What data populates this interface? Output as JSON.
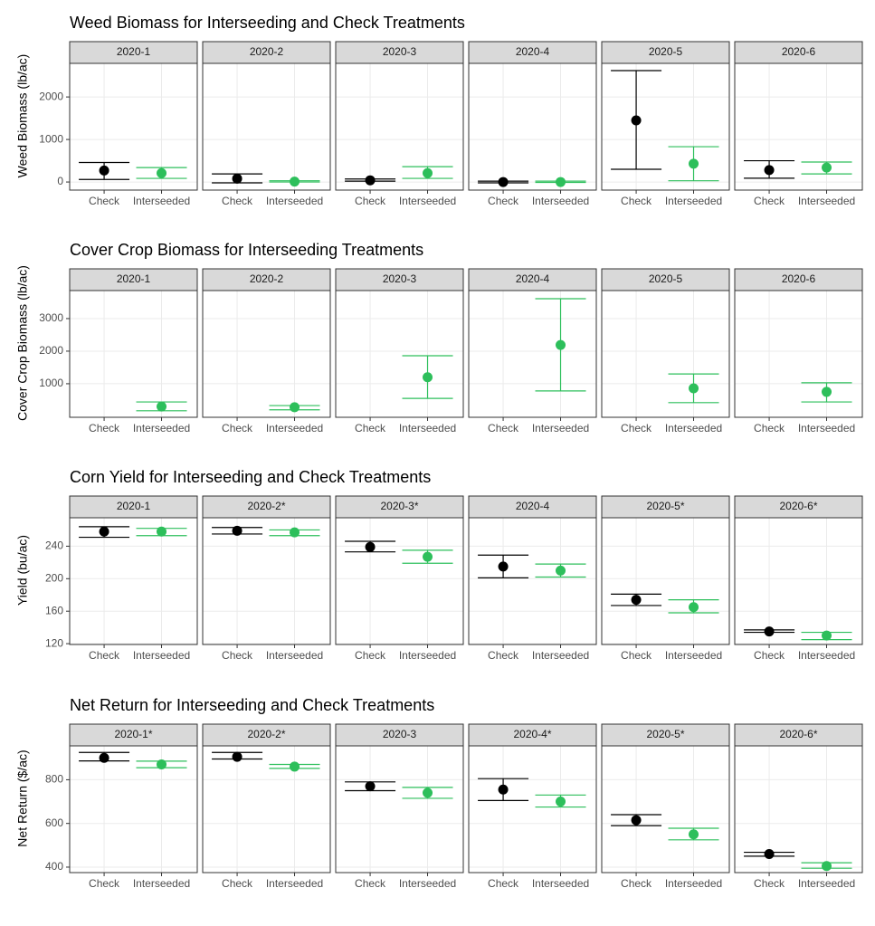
{
  "chart_data": [
    {
      "type": "errorbar",
      "title": "Weed Biomass for Interseeding and Check Treatments",
      "y_label": "Weed Biomass (lb/ac)",
      "categories": [
        "Check",
        "Interseeded"
      ],
      "colors": [
        "#000000",
        "#2dbf5b"
      ],
      "ylim": [
        -190,
        2790
      ],
      "yticks": [
        0,
        1000,
        2000
      ],
      "grid": true,
      "panels": [
        {
          "label": "2020-1",
          "values": [
            270,
            210
          ],
          "lower": [
            60,
            85
          ],
          "upper": [
            460,
            340
          ]
        },
        {
          "label": "2020-2",
          "values": [
            80,
            10
          ],
          "lower": [
            -20,
            0
          ],
          "upper": [
            190,
            30
          ]
        },
        {
          "label": "2020-3",
          "values": [
            40,
            210
          ],
          "lower": [
            20,
            85
          ],
          "upper": [
            70,
            360
          ]
        },
        {
          "label": "2020-4",
          "values": [
            0,
            0
          ],
          "lower": [
            -20,
            -10
          ],
          "upper": [
            20,
            20
          ]
        },
        {
          "label": "2020-5",
          "values": [
            1450,
            430
          ],
          "lower": [
            300,
            30
          ],
          "upper": [
            2620,
            830
          ]
        },
        {
          "label": "2020-6",
          "values": [
            280,
            340
          ],
          "lower": [
            90,
            190
          ],
          "upper": [
            500,
            470
          ]
        }
      ]
    },
    {
      "type": "errorbar",
      "title": "Cover Crop Biomass for Interseeding Treatments",
      "y_label": "Cover Crop Biomass (lb/ac)",
      "categories": [
        "Check",
        "Interseeded"
      ],
      "colors": [
        "#000000",
        "#2dbf5b"
      ],
      "ylim": [
        -30,
        3860
      ],
      "yticks": [
        1000,
        2000,
        3000
      ],
      "grid": true,
      "panels": [
        {
          "label": "2020-1",
          "values": [
            null,
            300
          ],
          "lower": [
            null,
            170
          ],
          "upper": [
            null,
            440
          ]
        },
        {
          "label": "2020-2",
          "values": [
            null,
            280
          ],
          "lower": [
            null,
            200
          ],
          "upper": [
            null,
            330
          ]
        },
        {
          "label": "2020-3",
          "values": [
            null,
            1200
          ],
          "lower": [
            null,
            550
          ],
          "upper": [
            null,
            1860
          ]
        },
        {
          "label": "2020-4",
          "values": [
            null,
            2190
          ],
          "lower": [
            null,
            780
          ],
          "upper": [
            null,
            3610
          ]
        },
        {
          "label": "2020-5",
          "values": [
            null,
            860
          ],
          "lower": [
            null,
            420
          ],
          "upper": [
            null,
            1300
          ]
        },
        {
          "label": "2020-6",
          "values": [
            null,
            750
          ],
          "lower": [
            null,
            440
          ],
          "upper": [
            null,
            1030
          ]
        }
      ]
    },
    {
      "type": "errorbar",
      "title": "Corn Yield for Interseeding and Check Treatments",
      "y_label": "Yield (bu/ac)",
      "categories": [
        "Check",
        "Interseeded"
      ],
      "colors": [
        "#000000",
        "#2dbf5b"
      ],
      "ylim": [
        119,
        275
      ],
      "yticks": [
        120,
        160,
        200,
        240
      ],
      "grid": true,
      "panels": [
        {
          "label": "2020-1",
          "values": [
            258,
            258
          ],
          "lower": [
            251,
            253
          ],
          "upper": [
            264,
            262
          ]
        },
        {
          "label": "2020-2*",
          "values": [
            259,
            257
          ],
          "lower": [
            255,
            253
          ],
          "upper": [
            263,
            260
          ]
        },
        {
          "label": "2020-3*",
          "values": [
            239,
            227
          ],
          "lower": [
            233,
            219
          ],
          "upper": [
            246,
            235
          ]
        },
        {
          "label": "2020-4",
          "values": [
            215,
            210
          ],
          "lower": [
            201,
            202
          ],
          "upper": [
            229,
            218
          ]
        },
        {
          "label": "2020-5*",
          "values": [
            174,
            165
          ],
          "lower": [
            167,
            158
          ],
          "upper": [
            181,
            174
          ]
        },
        {
          "label": "2020-6*",
          "values": [
            135,
            130
          ],
          "lower": [
            134,
            125
          ],
          "upper": [
            137,
            134
          ]
        }
      ]
    },
    {
      "type": "errorbar",
      "title": "Net Return for Interseeding and Check Treatments",
      "y_label": "Net Return ($/ac)",
      "categories": [
        "Check",
        "Interseeded"
      ],
      "colors": [
        "#000000",
        "#2dbf5b"
      ],
      "ylim": [
        375,
        955
      ],
      "yticks": [
        400,
        600,
        800
      ],
      "grid": true,
      "panels": [
        {
          "label": "2020-1*",
          "values": [
            900,
            870
          ],
          "lower": [
            886,
            855
          ],
          "upper": [
            925,
            885
          ]
        },
        {
          "label": "2020-2*",
          "values": [
            905,
            860
          ],
          "lower": [
            895,
            852
          ],
          "upper": [
            925,
            870
          ]
        },
        {
          "label": "2020-3",
          "values": [
            770,
            740
          ],
          "lower": [
            750,
            715
          ],
          "upper": [
            790,
            765
          ]
        },
        {
          "label": "2020-4*",
          "values": [
            755,
            700
          ],
          "lower": [
            705,
            675
          ],
          "upper": [
            805,
            730
          ]
        },
        {
          "label": "2020-5*",
          "values": [
            615,
            550
          ],
          "lower": [
            590,
            525
          ],
          "upper": [
            640,
            578
          ]
        },
        {
          "label": "2020-6*",
          "values": [
            460,
            405
          ],
          "lower": [
            450,
            395
          ],
          "upper": [
            468,
            420
          ]
        }
      ]
    }
  ]
}
